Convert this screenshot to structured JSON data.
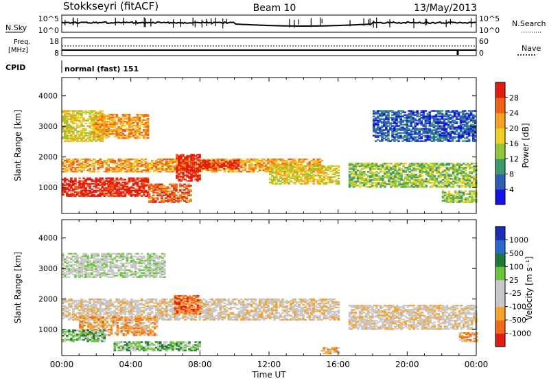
{
  "header": {
    "radar": "Stokkseyri (fitACF)",
    "beam": "Beam 10",
    "date": "13/May/2013"
  },
  "noise_panel": {
    "left_label": "N.Sky",
    "left_ticks": [
      "10^5",
      "10^0"
    ],
    "right_ticks": [
      "10^5",
      "10^0"
    ],
    "right_label": "N.Search"
  },
  "freq_panel": {
    "left_label_1": "Freq.",
    "left_label_2": "[MHz]",
    "left_ticks": [
      "18",
      "8"
    ],
    "right_ticks": [
      "60",
      "0"
    ],
    "right_label": "Nave"
  },
  "cpid": {
    "label": "CPID",
    "value": "normal (fast) 151"
  },
  "colors": {
    "power_scale": [
      "#1414e6",
      "#2f5fb5",
      "#3c9a6e",
      "#8fc83a",
      "#f0d020",
      "#f5a020",
      "#f06018",
      "#e51c10"
    ],
    "velocity_scale": [
      "#1a2fb5",
      "#2a6ad0",
      "#1f7a3a",
      "#6cc63a",
      "#c8c8c8",
      "#c8c8c8",
      "#f7a52a",
      "#f06a18",
      "#e51c10"
    ]
  },
  "chart_data": [
    {
      "type": "heatmap",
      "name": "power",
      "ylabel": "Slant Range [km]",
      "yticks": [
        1000,
        2000,
        3000,
        4000
      ],
      "ylim": [
        150,
        4600
      ],
      "xlim_hours": [
        0,
        24
      ],
      "colorbar_label": "Power [dB]",
      "colorbar_ticks": [
        "4",
        "8",
        "12",
        "16",
        "20",
        "24",
        "28"
      ],
      "bands": [
        {
          "t0": 0.0,
          "t1": 2.4,
          "r0": 2500,
          "r1": 3500,
          "level": 4
        },
        {
          "t0": 1.8,
          "t1": 5.0,
          "r0": 2600,
          "r1": 3400,
          "level": 5
        },
        {
          "t0": 0.0,
          "t1": 15.0,
          "r0": 1500,
          "r1": 1950,
          "level": 5
        },
        {
          "t0": 6.6,
          "t1": 8.0,
          "r0": 1200,
          "r1": 2100,
          "level": 7
        },
        {
          "t0": 8.0,
          "t1": 10.2,
          "r0": 1600,
          "r1": 1900,
          "level": 7
        },
        {
          "t0": 0.0,
          "t1": 5.0,
          "r0": 700,
          "r1": 1300,
          "level": 7
        },
        {
          "t0": 5.0,
          "t1": 7.5,
          "r0": 500,
          "r1": 1100,
          "level": 6
        },
        {
          "t0": 12.0,
          "t1": 16.0,
          "r0": 1100,
          "r1": 1700,
          "level": 4
        },
        {
          "t0": 16.6,
          "t1": 24.0,
          "r0": 1000,
          "r1": 1800,
          "level": 3
        },
        {
          "t0": 18.0,
          "t1": 24.0,
          "r0": 2500,
          "r1": 3500,
          "level": 1
        },
        {
          "t0": 22.0,
          "t1": 24.0,
          "r0": 500,
          "r1": 900,
          "level": 3
        }
      ]
    },
    {
      "type": "heatmap",
      "name": "velocity",
      "ylabel": "Slant Range [km]",
      "yticks": [
        1000,
        2000,
        3000,
        4000
      ],
      "ylim": [
        150,
        4600
      ],
      "xlim_hours": [
        0,
        24
      ],
      "colorbar_label": "Velocity [m s⁻¹]",
      "colorbar_ticks": [
        "1000",
        "500",
        "100",
        "25",
        "-25",
        "-100",
        "-500",
        "-1000"
      ],
      "bands": [
        {
          "t0": 0.0,
          "t1": 6.0,
          "r0": 2700,
          "r1": 3500,
          "level": 4
        },
        {
          "t0": 0.0,
          "t1": 16.0,
          "r0": 1300,
          "r1": 2000,
          "level": 5
        },
        {
          "t0": 1.0,
          "t1": 5.5,
          "r0": 800,
          "r1": 1400,
          "level": 6
        },
        {
          "t0": 6.5,
          "t1": 8.0,
          "r0": 1500,
          "r1": 2100,
          "level": 7
        },
        {
          "t0": 3.0,
          "t1": 8.0,
          "r0": 300,
          "r1": 600,
          "level": 3
        },
        {
          "t0": 0.0,
          "t1": 2.5,
          "r0": 600,
          "r1": 1000,
          "level": 3
        },
        {
          "t0": 16.6,
          "t1": 24.0,
          "r0": 1000,
          "r1": 1800,
          "level": 5
        },
        {
          "t0": 15.0,
          "t1": 16.0,
          "r0": 200,
          "r1": 400,
          "level": 6
        },
        {
          "t0": 23.0,
          "t1": 24.0,
          "r0": 600,
          "r1": 900,
          "level": 6
        }
      ]
    }
  ],
  "x_axis": {
    "label": "Time UT",
    "ticks": [
      "00:00",
      "04:00",
      "08:00",
      "12:00",
      "16:00",
      "20:00",
      "00:00"
    ]
  }
}
